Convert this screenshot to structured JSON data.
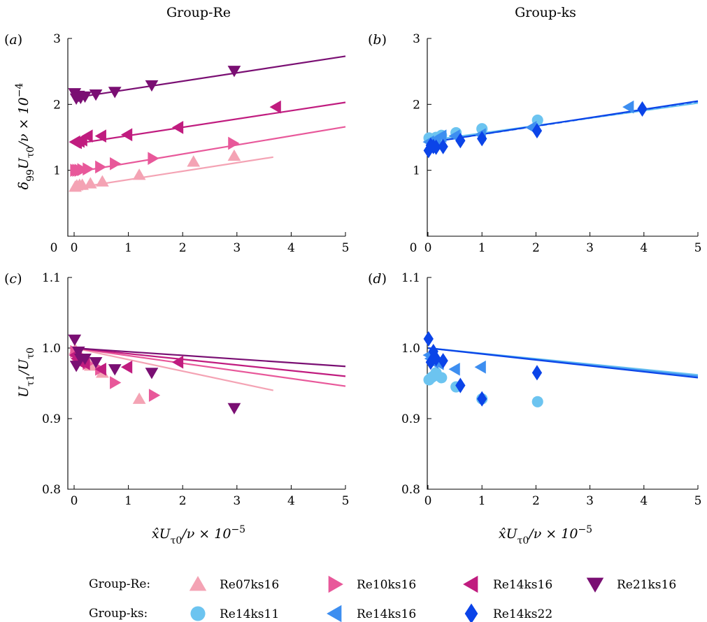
{
  "titles": {
    "left": "Group-Re",
    "right": "Group-ks"
  },
  "panel_labels": {
    "a": "a",
    "b": "b",
    "c": "c",
    "d": "d"
  },
  "axis_labels": {
    "y_top": "δ99Uτ0/ν × 10−4",
    "y_bottom": "Uτ1/Uτ0",
    "x_bottom": "x̂Uτ0/ν × 10−5"
  },
  "legend": {
    "group_re_label": "Group-Re:",
    "group_ks_label": "Group-ks:",
    "re_entries": [
      "Re07ks16",
      "Re10ks16",
      "Re14ks16",
      "Re21ks16"
    ],
    "ks_entries": [
      "Re14ks11",
      "Re14ks16",
      "Re14ks22"
    ]
  },
  "colors": {
    "Re07ks16": "#f4a3b4",
    "Re10ks16": "#e8589a",
    "Re14ks16": "#c01c7f",
    "Re21ks16": "#7a0f73",
    "Re14ks11": "#6cc4f0",
    "Re14ks16_ks": "#3d8ef0",
    "Re14ks22": "#0b44e8"
  },
  "chart_data": [
    {
      "id": "a",
      "type": "scatter",
      "xlim": [
        0,
        5
      ],
      "ylim": [
        0,
        3
      ],
      "xticks": [
        "0",
        "1",
        "2",
        "3",
        "4",
        "5"
      ],
      "yticks": [
        "1",
        "2",
        "3"
      ],
      "series": [
        {
          "name": "Re07ks16",
          "marker": "triangle-up",
          "points": [
            [
              0.02,
              0.75
            ],
            [
              0.05,
              0.77
            ],
            [
              0.1,
              0.78
            ],
            [
              0.15,
              0.78
            ],
            [
              0.3,
              0.8
            ],
            [
              0.52,
              0.83
            ],
            [
              1.2,
              0.93
            ],
            [
              2.2,
              1.13
            ],
            [
              2.95,
              1.22
            ]
          ],
          "fit": [
            [
              0,
              0.73
            ],
            [
              3.67,
              1.2
            ]
          ]
        },
        {
          "name": "Re10ks16",
          "marker": "triangle-right",
          "points": [
            [
              0.02,
              1.0
            ],
            [
              0.06,
              1.0
            ],
            [
              0.1,
              1.0
            ],
            [
              0.15,
              1.01
            ],
            [
              0.25,
              1.02
            ],
            [
              0.48,
              1.05
            ],
            [
              0.75,
              1.1
            ],
            [
              1.45,
              1.18
            ],
            [
              2.93,
              1.41
            ]
          ],
          "fit": [
            [
              0,
              0.97
            ],
            [
              5,
              1.66
            ]
          ]
        },
        {
          "name": "Re14ks16",
          "marker": "triangle-left",
          "points": [
            [
              0.02,
              1.43
            ],
            [
              0.05,
              1.42
            ],
            [
              0.1,
              1.44
            ],
            [
              0.15,
              1.46
            ],
            [
              0.25,
              1.52
            ],
            [
              0.5,
              1.52
            ],
            [
              0.98,
              1.54
            ],
            [
              1.92,
              1.65
            ],
            [
              3.72,
              1.96
            ]
          ],
          "fit": [
            [
              0,
              1.4
            ],
            [
              5,
              2.03
            ]
          ]
        },
        {
          "name": "Re21ks16",
          "marker": "triangle-down",
          "points": [
            [
              0.01,
              2.17
            ],
            [
              0.04,
              2.09
            ],
            [
              0.08,
              2.13
            ],
            [
              0.12,
              2.1
            ],
            [
              0.2,
              2.12
            ],
            [
              0.4,
              2.15
            ],
            [
              0.75,
              2.19
            ],
            [
              1.43,
              2.29
            ],
            [
              2.95,
              2.51
            ]
          ],
          "fit": [
            [
              0,
              2.1
            ],
            [
              5,
              2.73
            ]
          ]
        }
      ]
    },
    {
      "id": "b",
      "type": "scatter",
      "xlim": [
        0,
        5
      ],
      "ylim": [
        0,
        3
      ],
      "xticks": [
        "0",
        "1",
        "2",
        "3",
        "4",
        "5"
      ],
      "yticks": [
        "1",
        "2",
        "3"
      ],
      "series": [
        {
          "name": "Re14ks11",
          "marker": "circle",
          "points": [
            [
              0.02,
              1.49
            ],
            [
              0.06,
              1.47
            ],
            [
              0.1,
              1.47
            ],
            [
              0.15,
              1.5
            ],
            [
              0.25,
              1.53
            ],
            [
              0.52,
              1.57
            ],
            [
              1.0,
              1.63
            ],
            [
              2.03,
              1.76
            ]
          ],
          "fit": [
            [
              0,
              1.45
            ],
            [
              5,
              2.02
            ]
          ],
          "dash": false
        },
        {
          "name": "Re14ks16",
          "marker": "triangle-left",
          "points": [
            [
              0.02,
              1.43
            ],
            [
              0.05,
              1.42
            ],
            [
              0.1,
              1.44
            ],
            [
              0.15,
              1.46
            ],
            [
              0.25,
              1.52
            ],
            [
              0.5,
              1.52
            ],
            [
              0.98,
              1.54
            ],
            [
              1.92,
              1.65
            ],
            [
              3.72,
              1.96
            ]
          ],
          "fit": [
            [
              0,
              1.42
            ],
            [
              5,
              2.04
            ]
          ],
          "dash": true
        },
        {
          "name": "Re14ks22",
          "marker": "diamond",
          "points": [
            [
              0.01,
              1.3
            ],
            [
              0.05,
              1.38
            ],
            [
              0.1,
              1.36
            ],
            [
              0.15,
              1.35
            ],
            [
              0.28,
              1.36
            ],
            [
              0.6,
              1.45
            ],
            [
              1.0,
              1.48
            ],
            [
              2.02,
              1.6
            ],
            [
              3.97,
              1.93
            ]
          ],
          "fit": [
            [
              0,
              1.42
            ],
            [
              5,
              2.05
            ]
          ],
          "dash": false
        }
      ]
    },
    {
      "id": "c",
      "type": "scatter",
      "xlim": [
        0,
        5
      ],
      "ylim": [
        0.8,
        1.1
      ],
      "xticks": [
        "0",
        "1",
        "2",
        "3",
        "4",
        "5"
      ],
      "yticks": [
        "0.8",
        "0.9",
        "1.0",
        "1.1"
      ],
      "series": [
        {
          "name": "Re07ks16",
          "marker": "triangle-up",
          "points": [
            [
              0.02,
              0.998
            ],
            [
              0.08,
              0.985
            ],
            [
              0.15,
              0.985
            ],
            [
              0.3,
              0.975
            ],
            [
              0.52,
              0.965
            ],
            [
              1.2,
              0.928
            ]
          ],
          "fit": [
            [
              0,
              1.0
            ],
            [
              3.67,
              0.94
            ]
          ]
        },
        {
          "name": "Re10ks16",
          "marker": "triangle-right",
          "points": [
            [
              0.02,
              0.995
            ],
            [
              0.06,
              0.99
            ],
            [
              0.12,
              0.985
            ],
            [
              0.25,
              0.978
            ],
            [
              0.48,
              0.97
            ],
            [
              0.75,
              0.951
            ],
            [
              1.47,
              0.933
            ]
          ],
          "fit": [
            [
              0,
              1.0
            ],
            [
              5,
              0.946
            ]
          ]
        },
        {
          "name": "Re14ks16",
          "marker": "triangle-left",
          "points": [
            [
              0.02,
              0.99
            ],
            [
              0.05,
              0.985
            ],
            [
              0.1,
              0.98
            ],
            [
              0.2,
              0.978
            ],
            [
              0.5,
              0.97
            ],
            [
              0.98,
              0.973
            ],
            [
              1.92,
              0.98
            ]
          ],
          "fit": [
            [
              0,
              1.0
            ],
            [
              5,
              0.96
            ]
          ]
        },
        {
          "name": "Re21ks16",
          "marker": "triangle-down",
          "points": [
            [
              0.01,
              1.012
            ],
            [
              0.04,
              0.975
            ],
            [
              0.08,
              0.995
            ],
            [
              0.12,
              0.985
            ],
            [
              0.2,
              0.985
            ],
            [
              0.4,
              0.98
            ],
            [
              0.75,
              0.97
            ],
            [
              1.43,
              0.965
            ],
            [
              2.95,
              0.915
            ]
          ],
          "fit": [
            [
              0,
              1.0
            ],
            [
              5,
              0.974
            ]
          ]
        }
      ]
    },
    {
      "id": "d",
      "type": "scatter",
      "xlim": [
        0,
        5
      ],
      "ylim": [
        0.8,
        1.1
      ],
      "xticks": [
        "0",
        "1",
        "2",
        "3",
        "4",
        "5"
      ],
      "yticks": [
        "0.8",
        "0.9",
        "1.0",
        "1.1"
      ],
      "series": [
        {
          "name": "Re14ks11",
          "marker": "circle",
          "points": [
            [
              0.02,
              0.955
            ],
            [
              0.06,
              0.958
            ],
            [
              0.1,
              0.96
            ],
            [
              0.15,
              0.965
            ],
            [
              0.25,
              0.958
            ],
            [
              0.52,
              0.945
            ],
            [
              1.0,
              0.928
            ],
            [
              2.03,
              0.924
            ]
          ],
          "fit": [
            [
              0,
              1.0
            ],
            [
              5,
              0.962
            ]
          ],
          "dash": false
        },
        {
          "name": "Re14ks16",
          "marker": "triangle-left",
          "points": [
            [
              0.02,
              0.99
            ],
            [
              0.05,
              0.985
            ],
            [
              0.1,
              0.98
            ],
            [
              0.2,
              0.978
            ],
            [
              0.5,
              0.97
            ],
            [
              0.98,
              0.973
            ]
          ],
          "fit": [
            [
              0,
              1.0
            ],
            [
              5,
              0.96
            ]
          ],
          "dash": false
        },
        {
          "name": "Re14ks22",
          "marker": "diamond",
          "points": [
            [
              0.01,
              1.013
            ],
            [
              0.05,
              0.98
            ],
            [
              0.1,
              0.995
            ],
            [
              0.15,
              0.985
            ],
            [
              0.28,
              0.982
            ],
            [
              0.6,
              0.947
            ],
            [
              1.0,
              0.928
            ],
            [
              2.02,
              0.965
            ]
          ],
          "fit": [
            [
              0,
              1.0
            ],
            [
              5,
              0.958
            ]
          ],
          "dash": false
        }
      ]
    }
  ]
}
